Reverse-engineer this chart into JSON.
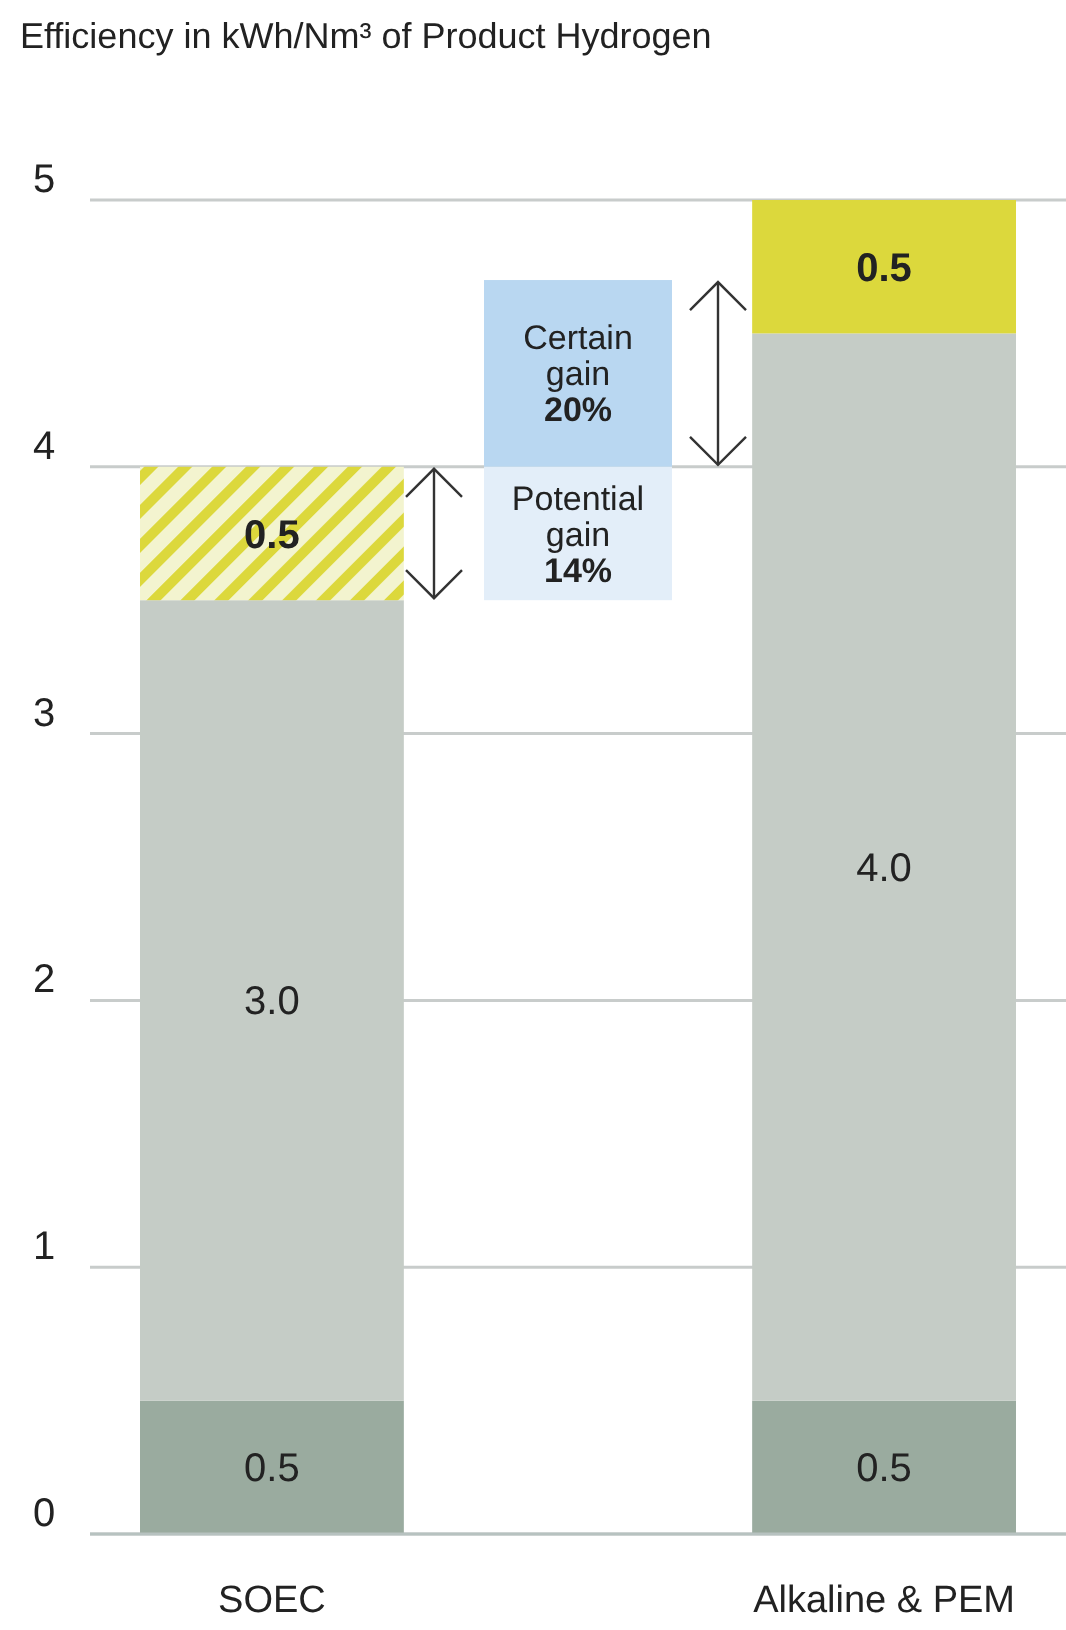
{
  "chart_data": {
    "type": "bar",
    "title": "Efficiency in kWh/Nm³ of Product Hydrogen",
    "categories": [
      "SOEC",
      "Alkaline & PEM"
    ],
    "stacked": true,
    "grid": "y",
    "series": [
      {
        "color": "#9aab9f",
        "values": [
          0.5,
          0.5
        ],
        "value_labels": [
          "0.5",
          "0.5"
        ]
      },
      {
        "color": "#c5ccc6",
        "values": [
          3.0,
          4.0
        ],
        "value_labels": [
          "3.0",
          "4.0"
        ]
      },
      {
        "color": "#dcd83c",
        "colors": [
          "#f3f4cf",
          "#dcd83c"
        ],
        "values": [
          0.5,
          0.5
        ],
        "value_labels": [
          "0.5",
          "0.5"
        ]
      }
    ],
    "ylim": [
      0,
      5
    ],
    "yticks": [
      0,
      1,
      2,
      3,
      4,
      5
    ],
    "annotations": [
      "Certain gain 20%",
      "Potential gain 14%"
    ]
  }
}
